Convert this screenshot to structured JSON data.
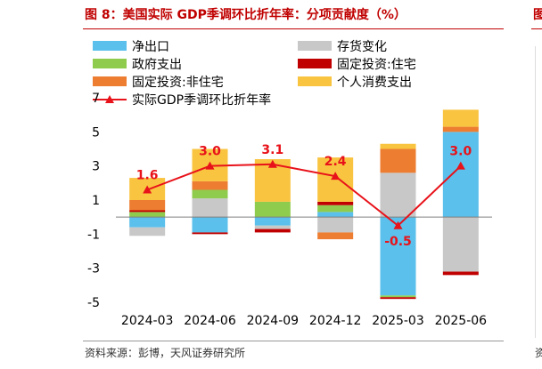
{
  "title": "图 8：美国实际 GDP季调环比折年率：分项贡献度（%）",
  "source": "资料来源：彭博，天风证券研究所",
  "edge": {
    "title": "图",
    "source": "资"
  },
  "colors": {
    "title": "#c00000",
    "net_exports": "#5bc0eb",
    "inventory": "#c8c8c8",
    "government": "#8fcc4e",
    "residential": "#c00000",
    "nonres_investment": "#ed7d31",
    "consumption": "#f9c440",
    "gdp_line": "#e8121a"
  },
  "chart_data": {
    "type": "bar",
    "stacked": true,
    "categories": [
      "2024-03",
      "2024-06",
      "2024-09",
      "2024-12",
      "2025-03",
      "2025-06"
    ],
    "ylim": [
      -5,
      7
    ],
    "yticks": [
      -5,
      -3,
      -1,
      1,
      3,
      5,
      7
    ],
    "xlabel": "",
    "ylabel": "",
    "legend_position": "top",
    "series": [
      {
        "key": "net_exports",
        "name": "净出口",
        "values": [
          -0.6,
          -0.9,
          -0.5,
          0.3,
          -4.6,
          5.0
        ]
      },
      {
        "key": "inventory",
        "name": "存货变化",
        "values": [
          -0.5,
          1.1,
          -0.2,
          -0.9,
          2.6,
          -3.2
        ]
      },
      {
        "key": "government",
        "name": "政府支出",
        "values": [
          0.3,
          0.5,
          0.9,
          0.4,
          -0.1,
          0.0
        ]
      },
      {
        "key": "residential",
        "name": "固定投资:住宅",
        "values": [
          0.1,
          -0.1,
          -0.2,
          0.2,
          -0.1,
          -0.2
        ]
      },
      {
        "key": "nonres_investment",
        "name": "固定投资:非住宅",
        "values": [
          0.6,
          0.5,
          0.0,
          -0.4,
          1.4,
          0.3
        ]
      },
      {
        "key": "consumption",
        "name": "个人消费支出",
        "values": [
          1.3,
          1.9,
          2.5,
          2.6,
          0.3,
          1.0
        ]
      }
    ],
    "line": {
      "key": "gdp_line",
      "name": "实际GDP季调环比折年率",
      "values": [
        1.6,
        3.0,
        3.1,
        2.4,
        -0.5,
        3.0
      ],
      "labels": [
        "1.6",
        "3.0",
        "3.1",
        "2.4",
        "-0.5",
        "3.0"
      ]
    }
  }
}
